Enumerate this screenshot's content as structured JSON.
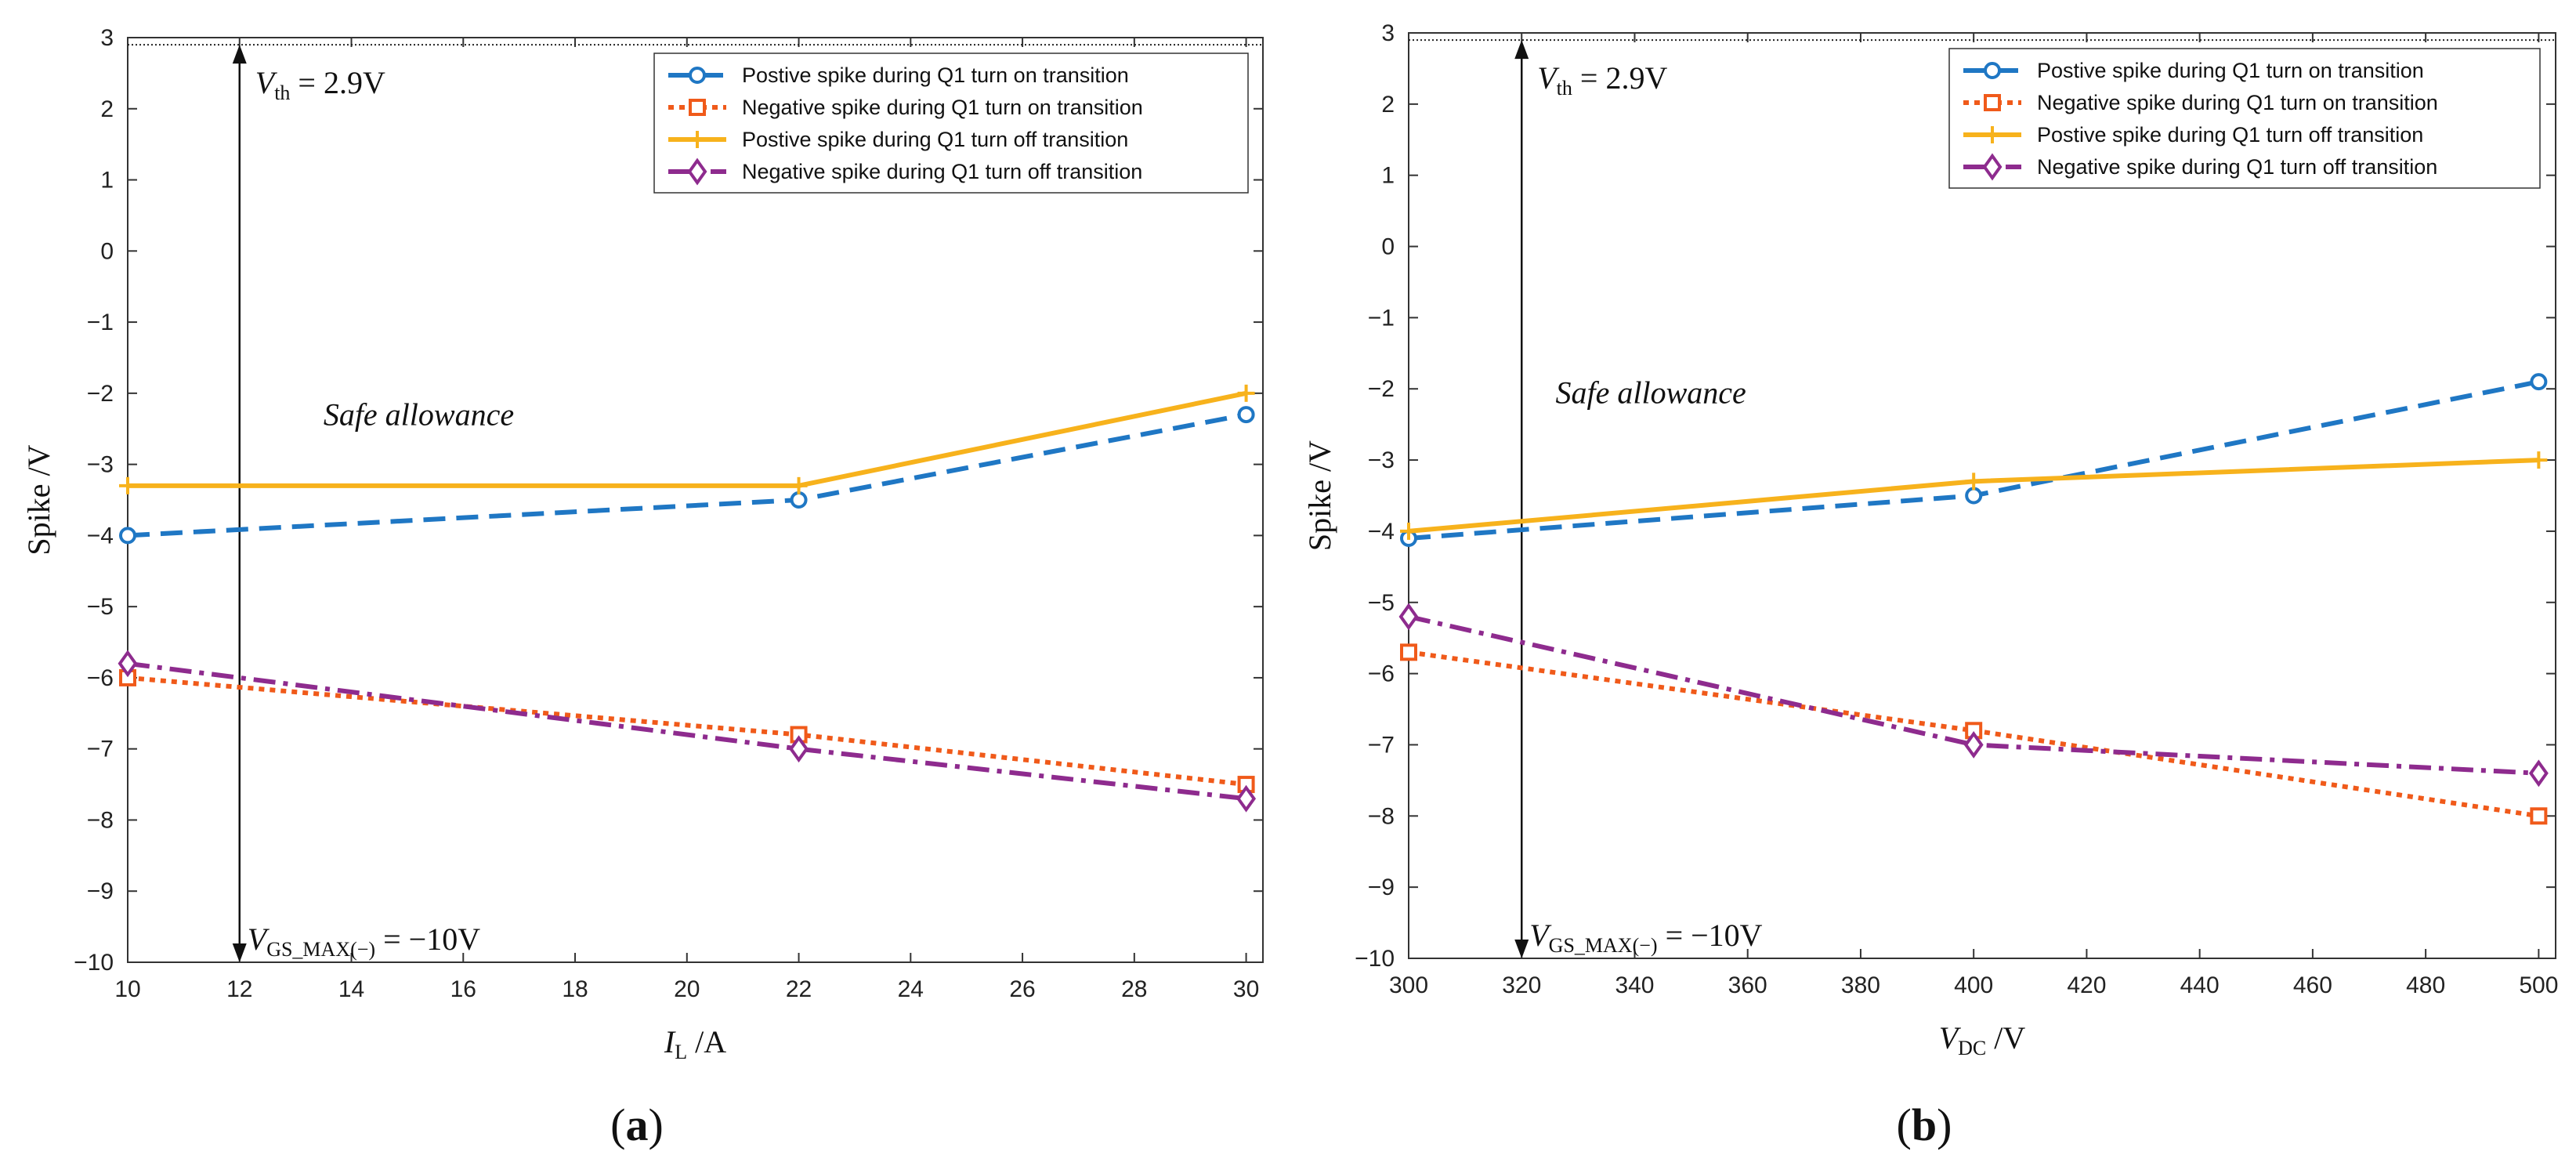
{
  "chart_data": [
    {
      "type": "line",
      "panel_label": "(a)",
      "xlabel_main": "I",
      "xlabel_sub": "L",
      "xlabel_unit": " /A",
      "ylabel": "Spike /V",
      "xlim": [
        10,
        30.3
      ],
      "ylim": [
        -10,
        3
      ],
      "xticks": [
        10,
        12,
        14,
        16,
        18,
        20,
        22,
        24,
        26,
        28,
        30
      ],
      "yticks": [
        -10,
        -9,
        -8,
        -7,
        -6,
        -5,
        -4,
        -3,
        -2,
        -1,
        0,
        1,
        2,
        3
      ],
      "vth_value": 2.9,
      "vth_label_main": "V",
      "vth_label_sub": "th",
      "vth_label_rest": " = 2.9V",
      "vgs_label_main": "V",
      "vgs_label_sub": "GS_MAX(−)",
      "vgs_label_rest": " = −10V",
      "vgs_value": -10,
      "arrow_x": 12,
      "safe_label": "Safe allowance",
      "safe_label_pos": [
        13.5,
        -2.45
      ],
      "legend_position": "top-right",
      "series": [
        {
          "name": "Postive spike during Q1 turn on transition",
          "x": [
            10,
            22,
            30
          ],
          "values": [
            -4.0,
            -3.5,
            -2.3
          ],
          "color": "#1f77c4",
          "dash": "28,14",
          "marker": "circle"
        },
        {
          "name": "Negative spike during Q1 turn on transition",
          "x": [
            10,
            22,
            30
          ],
          "values": [
            -6.0,
            -6.8,
            -7.5
          ],
          "color": "#f05a1a",
          "dash": "7,7",
          "marker": "square"
        },
        {
          "name": "Postive spike during Q1 turn off transition",
          "x": [
            10,
            22,
            30
          ],
          "values": [
            -3.3,
            -3.3,
            -2.0
          ],
          "color": "#f7b21c",
          "dash": "",
          "marker": "plus"
        },
        {
          "name": "Negative spike during Q1 turn off transition",
          "x": [
            10,
            22,
            30
          ],
          "values": [
            -5.8,
            -7.0,
            -7.7
          ],
          "color": "#8e2b8e",
          "dash": "28,10,6,10",
          "marker": "diamond"
        }
      ]
    },
    {
      "type": "line",
      "panel_label": "(b)",
      "xlabel_main": "V",
      "xlabel_sub": "DC",
      "xlabel_unit": " /V",
      "ylabel": "Spike /V",
      "xlim": [
        300,
        503
      ],
      "ylim": [
        -10,
        3
      ],
      "xticks": [
        300,
        320,
        340,
        360,
        380,
        400,
        420,
        440,
        460,
        480,
        500
      ],
      "yticks": [
        -10,
        -9,
        -8,
        -7,
        -6,
        -5,
        -4,
        -3,
        -2,
        -1,
        0,
        1,
        2,
        3
      ],
      "vth_value": 2.9,
      "vth_label_main": "V",
      "vth_label_sub": "th",
      "vth_label_rest": " = 2.9V",
      "vgs_label_main": "V",
      "vgs_label_sub": "GS_MAX(−)",
      "vgs_label_rest": " = −10V",
      "vgs_value": -10,
      "arrow_x": 320,
      "safe_label": "Safe allowance",
      "safe_label_pos": [
        326,
        -2.2
      ],
      "legend_position": "top-right",
      "series": [
        {
          "name": "Postive spike during Q1 turn on transition",
          "x": [
            300,
            400,
            500
          ],
          "values": [
            -4.1,
            -3.5,
            -1.9
          ],
          "color": "#1f77c4",
          "dash": "28,14",
          "marker": "circle"
        },
        {
          "name": "Negative spike during Q1 turn on transition",
          "x": [
            300,
            400,
            500
          ],
          "values": [
            -5.7,
            -6.8,
            -8.0
          ],
          "color": "#f05a1a",
          "dash": "7,7",
          "marker": "square"
        },
        {
          "name": "Postive spike during Q1 turn off transition",
          "x": [
            300,
            400,
            500
          ],
          "values": [
            -4.0,
            -3.3,
            -3.0
          ],
          "color": "#f7b21c",
          "dash": "",
          "marker": "plus"
        },
        {
          "name": "Negative spike during Q1 turn off transition",
          "x": [
            300,
            400,
            500
          ],
          "values": [
            -5.2,
            -7.0,
            -7.4
          ],
          "color": "#8e2b8e",
          "dash": "28,10,6,10",
          "marker": "diamond"
        }
      ]
    }
  ]
}
